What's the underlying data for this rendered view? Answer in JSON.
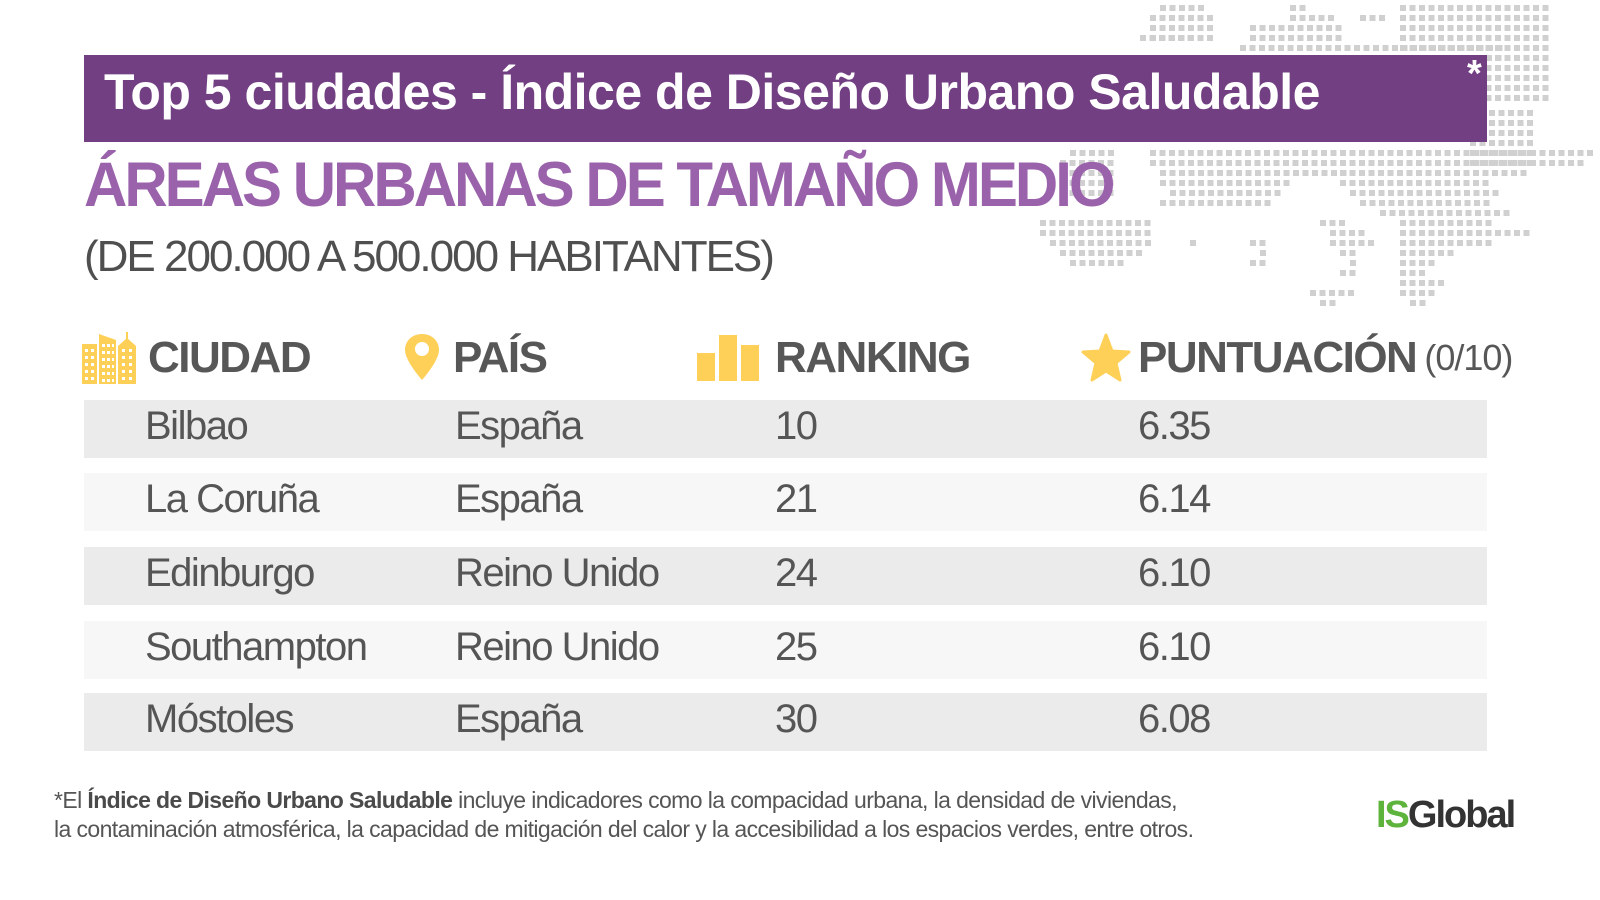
{
  "header": {
    "title": "Top 5 ciudades - Índice de Diseño Urbano Saludable",
    "title_asterisk": "*",
    "subtitle": "ÁREAS URBANAS DE TAMAÑO MEDIO",
    "population_range": "(DE 200.000 A 500.000 HABITANTES)"
  },
  "table": {
    "columns": [
      {
        "label": "CIUDAD",
        "icon": "buildings-icon",
        "suffix": ""
      },
      {
        "label": "PAÍS",
        "icon": "location-pin-icon",
        "suffix": ""
      },
      {
        "label": "RANKING",
        "icon": "bar-chart-icon",
        "suffix": ""
      },
      {
        "label": "PUNTUACIÓN",
        "icon": "star-icon",
        "suffix": "(0/10)"
      }
    ],
    "rows": [
      {
        "city": "Bilbao",
        "country": "España",
        "ranking": "10",
        "score": "6.35"
      },
      {
        "city": "La Coruña",
        "country": "España",
        "ranking": "21",
        "score": "6.14"
      },
      {
        "city": "Edinburgo",
        "country": "Reino Unido",
        "ranking": "24",
        "score": "6.10"
      },
      {
        "city": "Southampton",
        "country": "Reino Unido",
        "ranking": "25",
        "score": "6.10"
      },
      {
        "city": "Móstoles",
        "country": "España",
        "ranking": "30",
        "score": "6.08"
      }
    ]
  },
  "footnote": {
    "prefix": "*El ",
    "bold_term": "Índice de Diseño Urbano Saludable",
    "line1_rest": " incluye indicadores como la compacidad urbana, la densidad de viviendas,",
    "line2": "la contaminación atmosférica, la capacidad de mitigación del calor y la accesibilidad a los espacios verdes, entre otros."
  },
  "logo": {
    "part1": "IS",
    "part2": "Global"
  },
  "colors": {
    "title_bar": "#723f83",
    "subtitle": "#9a62ab",
    "icon_yellow": "#fed058",
    "row_dark": "#ebebeb",
    "row_light": "#f7f7f7",
    "logo_green": "#5db33b",
    "map_dots": "#d0d0d0"
  }
}
